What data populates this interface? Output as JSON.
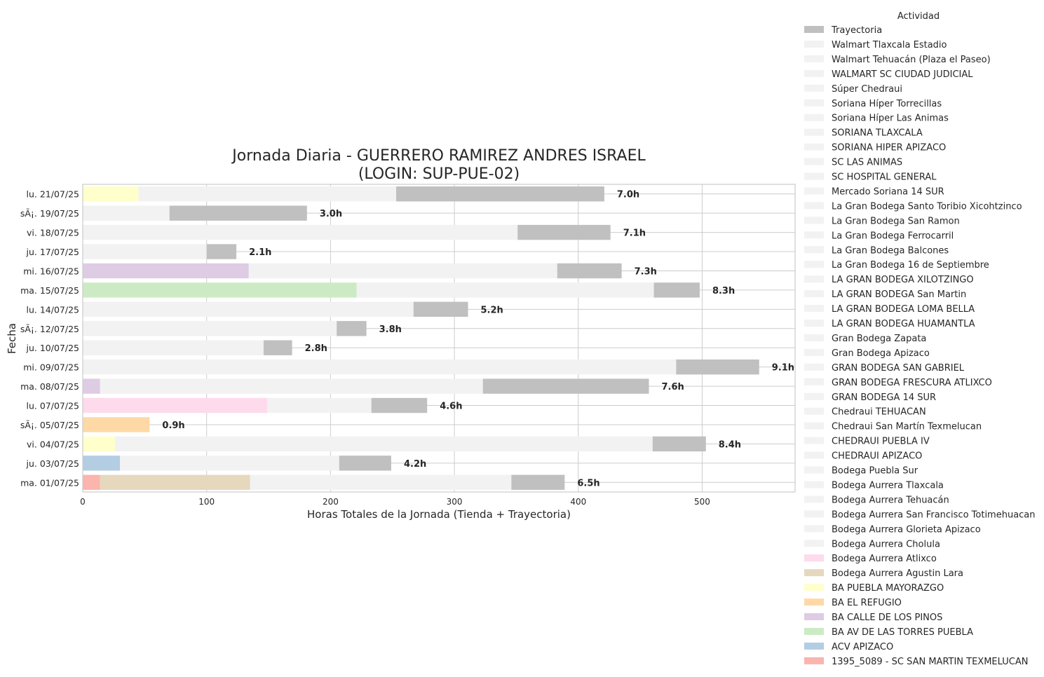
{
  "chart_data": {
    "type": "bar",
    "orientation": "horizontal",
    "stacked": true,
    "title_line1": "Jornada Diaria - GUERRERO RAMIREZ ANDRES ISRAEL",
    "title_line2": "(LOGIN: SUP-PUE-02)",
    "xlabel": "Horas Totales de la Jornada (Tienda + Trayectoria)",
    "ylabel": "Fecha",
    "xlim": [
      0,
      575
    ],
    "xticks": [
      0,
      100,
      200,
      300,
      400,
      500
    ],
    "grid": true,
    "legend_position": "right",
    "legend_title": "Actividad",
    "legend": [
      {
        "name": "Trayectoria",
        "color": "#c0c0c0"
      },
      {
        "name": "Walmart Tlaxcala Estadio",
        "color": "#f2f2f2"
      },
      {
        "name": "Walmart Tehuacán (Plaza el Paseo)",
        "color": "#f2f2f2"
      },
      {
        "name": "WALMART SC CIUDAD JUDICIAL",
        "color": "#f2f2f2"
      },
      {
        "name": "Súper Chedraui",
        "color": "#f2f2f2"
      },
      {
        "name": "Soriana Híper Torrecillas",
        "color": "#f2f2f2"
      },
      {
        "name": "Soriana Híper Las Animas",
        "color": "#f2f2f2"
      },
      {
        "name": "SORIANA TLAXCALA",
        "color": "#f2f2f2"
      },
      {
        "name": "SORIANA HIPER APIZACO",
        "color": "#f2f2f2"
      },
      {
        "name": "SC LAS ANIMAS",
        "color": "#f2f2f2"
      },
      {
        "name": "SC HOSPITAL GENERAL",
        "color": "#f2f2f2"
      },
      {
        "name": "Mercado Soriana 14 SUR",
        "color": "#f2f2f2"
      },
      {
        "name": "La Gran Bodega Santo Toribio Xicohtzinco",
        "color": "#f2f2f2"
      },
      {
        "name": "La Gran Bodega San Ramon",
        "color": "#f2f2f2"
      },
      {
        "name": "La Gran Bodega Ferrocarril",
        "color": "#f2f2f2"
      },
      {
        "name": "La Gran Bodega Balcones",
        "color": "#f2f2f2"
      },
      {
        "name": "La Gran Bodega 16 de Septiembre",
        "color": "#f2f2f2"
      },
      {
        "name": "LA GRAN BODEGA XILOTZINGO",
        "color": "#f2f2f2"
      },
      {
        "name": "LA GRAN BODEGA San Martin",
        "color": "#f2f2f2"
      },
      {
        "name": "LA GRAN BODEGA LOMA BELLA",
        "color": "#f2f2f2"
      },
      {
        "name": "LA GRAN BODEGA HUAMANTLA",
        "color": "#f2f2f2"
      },
      {
        "name": "Gran Bodega Zapata",
        "color": "#f2f2f2"
      },
      {
        "name": "Gran Bodega Apizaco",
        "color": "#f2f2f2"
      },
      {
        "name": "GRAN BODEGA SAN GABRIEL",
        "color": "#f2f2f2"
      },
      {
        "name": "GRAN BODEGA FRESCURA ATLIXCO",
        "color": "#f2f2f2"
      },
      {
        "name": "GRAN BODEGA 14 SUR",
        "color": "#f2f2f2"
      },
      {
        "name": "Chedraui TEHUACAN",
        "color": "#f2f2f2"
      },
      {
        "name": "Chedraui San Martín Texmelucan",
        "color": "#f2f2f2"
      },
      {
        "name": "CHEDRAUI PUEBLA IV",
        "color": "#f2f2f2"
      },
      {
        "name": "CHEDRAUI APIZACO",
        "color": "#f2f2f2"
      },
      {
        "name": "Bodega Puebla Sur",
        "color": "#f2f2f2"
      },
      {
        "name": "Bodega Aurrera Tlaxcala",
        "color": "#f2f2f2"
      },
      {
        "name": "Bodega Aurrera Tehuacán",
        "color": "#f2f2f2"
      },
      {
        "name": "Bodega Aurrera San Francisco Totimehuacan",
        "color": "#f2f2f2"
      },
      {
        "name": "Bodega Aurrera Glorieta Apizaco",
        "color": "#f2f2f2"
      },
      {
        "name": "Bodega Aurrera Cholula",
        "color": "#f2f2f2"
      },
      {
        "name": "Bodega Aurrera Atlixco",
        "color": "#fddaec"
      },
      {
        "name": "Bodega Aurrera Agustin Lara",
        "color": "#e5d8bd"
      },
      {
        "name": "BA PUEBLA MAYORAZGO",
        "color": "#ffffcc"
      },
      {
        "name": "BA EL REFUGIO",
        "color": "#fed9a6"
      },
      {
        "name": "BA CALLE DE LOS PINOS",
        "color": "#decbe4"
      },
      {
        "name": "BA AV DE LAS TORRES PUEBLA",
        "color": "#ccebc5"
      },
      {
        "name": "ACV APIZACO",
        "color": "#b3cde3"
      },
      {
        "name": "1395_5089 - SC SAN MARTIN TEXMELUCAN",
        "color": "#fbb4ae"
      }
    ],
    "categories": [
      "lu. 21/07/25",
      "sÃ¡. 19/07/25",
      "vi. 18/07/25",
      "ju. 17/07/25",
      "mi. 16/07/25",
      "ma. 15/07/25",
      "lu. 14/07/25",
      "sÃ¡. 12/07/25",
      "ju. 10/07/25",
      "mi. 09/07/25",
      "ma. 08/07/25",
      "lu. 07/07/25",
      "sÃ¡. 05/07/25",
      "vi. 04/07/25",
      "ju. 03/07/25",
      "ma. 01/07/25"
    ],
    "rows": [
      {
        "label": "7.0h",
        "segments": [
          {
            "activity": "BA PUEBLA MAYORAZGO",
            "value": 45
          },
          {
            "activity": "Tienda",
            "value": 208
          },
          {
            "activity": "Trayectoria",
            "value": 168
          }
        ]
      },
      {
        "label": "3.0h",
        "segments": [
          {
            "activity": "Tienda",
            "value": 70
          },
          {
            "activity": "Trayectoria",
            "value": 111
          }
        ]
      },
      {
        "label": "7.1h",
        "segments": [
          {
            "activity": "Tienda",
            "value": 351
          },
          {
            "activity": "Trayectoria",
            "value": 75
          }
        ]
      },
      {
        "label": "2.1h",
        "segments": [
          {
            "activity": "Tienda",
            "value": 100
          },
          {
            "activity": "Trayectoria",
            "value": 24
          }
        ]
      },
      {
        "label": "7.3h",
        "segments": [
          {
            "activity": "BA CALLE DE LOS PINOS",
            "value": 134
          },
          {
            "activity": "Tienda",
            "value": 249
          },
          {
            "activity": "Trayectoria",
            "value": 52
          }
        ]
      },
      {
        "label": "8.3h",
        "segments": [
          {
            "activity": "BA AV DE LAS TORRES PUEBLA",
            "value": 221
          },
          {
            "activity": "Tienda",
            "value": 240
          },
          {
            "activity": "Trayectoria",
            "value": 37
          }
        ]
      },
      {
        "label": "5.2h",
        "segments": [
          {
            "activity": "Tienda",
            "value": 267
          },
          {
            "activity": "Trayectoria",
            "value": 44
          }
        ]
      },
      {
        "label": "3.8h",
        "segments": [
          {
            "activity": "Tienda",
            "value": 205
          },
          {
            "activity": "Trayectoria",
            "value": 24
          }
        ]
      },
      {
        "label": "2.8h",
        "segments": [
          {
            "activity": "Tienda",
            "value": 146
          },
          {
            "activity": "Trayectoria",
            "value": 23
          }
        ]
      },
      {
        "label": "9.1h",
        "segments": [
          {
            "activity": "Tienda",
            "value": 479
          },
          {
            "activity": "Trayectoria",
            "value": 67
          }
        ]
      },
      {
        "label": "7.6h",
        "segments": [
          {
            "activity": "BA CALLE DE LOS PINOS",
            "value": 14
          },
          {
            "activity": "Tienda",
            "value": 309
          },
          {
            "activity": "Trayectoria",
            "value": 134
          }
        ]
      },
      {
        "label": "4.6h",
        "segments": [
          {
            "activity": "Bodega Aurrera Atlixco",
            "value": 149
          },
          {
            "activity": "Tienda",
            "value": 84
          },
          {
            "activity": "Trayectoria",
            "value": 45
          }
        ]
      },
      {
        "label": "0.9h",
        "segments": [
          {
            "activity": "BA EL REFUGIO",
            "value": 54
          }
        ]
      },
      {
        "label": "8.4h",
        "segments": [
          {
            "activity": "BA PUEBLA MAYORAZGO",
            "value": 26
          },
          {
            "activity": "Tienda",
            "value": 434
          },
          {
            "activity": "Trayectoria",
            "value": 43
          }
        ]
      },
      {
        "label": "4.2h",
        "segments": [
          {
            "activity": "ACV APIZACO",
            "value": 30
          },
          {
            "activity": "Tienda",
            "value": 177
          },
          {
            "activity": "Trayectoria",
            "value": 42
          }
        ]
      },
      {
        "label": "6.5h",
        "segments": [
          {
            "activity": "1395_5089 - SC SAN MARTIN TEXMELUCAN",
            "value": 14
          },
          {
            "activity": "Bodega Aurrera Agustin Lara",
            "value": 121
          },
          {
            "activity": "Tienda",
            "value": 211
          },
          {
            "activity": "Trayectoria",
            "value": 43
          }
        ]
      }
    ]
  }
}
